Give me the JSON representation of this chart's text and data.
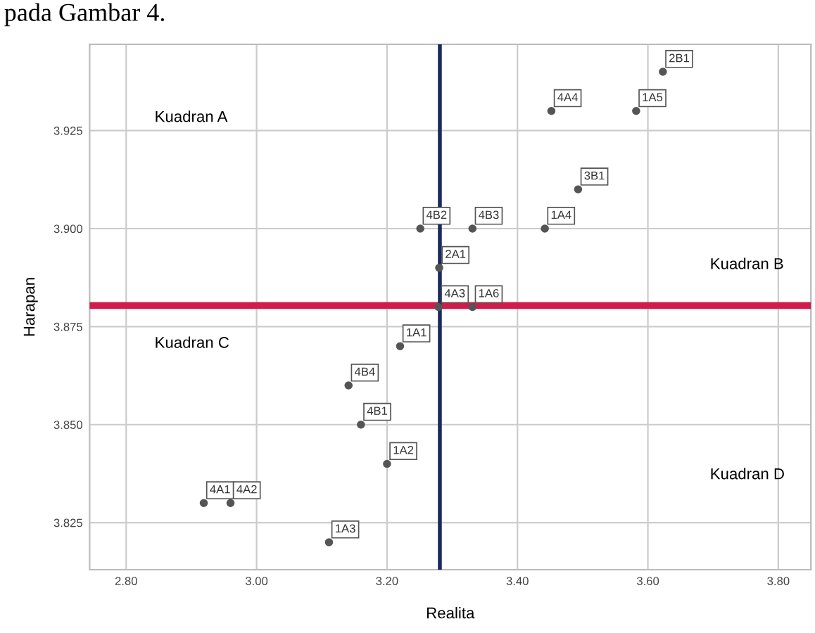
{
  "chart_data": {
    "type": "scatter",
    "xlabel": "Realita",
    "ylabel": "Harapan",
    "annotations": [
      "pada Gambar 4.",
      "Kuadran A",
      "Kuadran B",
      "Kuadran C",
      "Kuadran D"
    ],
    "xlim": [
      2.744,
      3.85
    ],
    "ylim": [
      3.813,
      3.947
    ],
    "xticks": [
      {
        "value": 2.8,
        "label": "2.80"
      },
      {
        "value": 3.0,
        "label": "3.00"
      },
      {
        "value": 3.2,
        "label": "3.20"
      },
      {
        "value": 3.4,
        "label": "3.40"
      },
      {
        "value": 3.6,
        "label": "3.60"
      },
      {
        "value": 3.8,
        "label": "3.80"
      }
    ],
    "yticks": [
      3.825,
      {
        "value": 3.85,
        "label": "3.850"
      },
      3.875,
      {
        "value": 3.9,
        "label": "3.900"
      },
      3.925
    ],
    "grid": true,
    "marker": "circle",
    "ref_lines": [
      {
        "axis": "y",
        "value": 3.8804,
        "color": "#d01c4b"
      },
      {
        "axis": "x",
        "value": 3.281,
        "color": "#1b2a5e"
      }
    ],
    "series": [
      {
        "color": "#555555",
        "x": [
          3.452,
          3.582,
          3.623,
          3.493,
          3.442,
          3.331,
          3.251,
          3.28,
          3.331,
          3.279,
          3.22,
          3.141,
          3.16,
          3.2,
          2.919,
          2.96,
          3.111
        ],
        "values": [
          3.93,
          3.93,
          3.94,
          3.91,
          3.9,
          3.9,
          3.9,
          3.89,
          3.88,
          3.88,
          3.87,
          3.86,
          3.85,
          3.84,
          3.83,
          3.83,
          3.82
        ],
        "value_labels": [
          "4A4",
          "1A5",
          "2B1",
          "3B1",
          "1A4",
          "4B3",
          "4B2",
          "2A1",
          "1A6",
          "4A3",
          "1A1",
          "4B4",
          "4B1",
          "1A2",
          "4A1",
          "4A2",
          "1A3"
        ]
      }
    ]
  }
}
